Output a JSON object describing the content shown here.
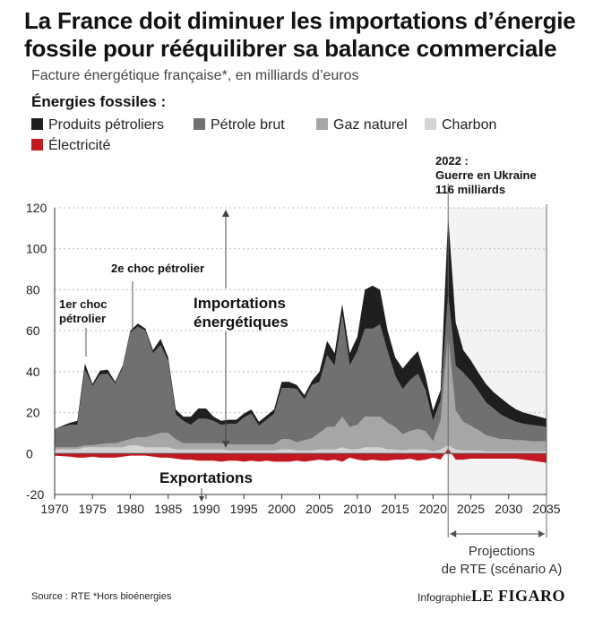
{
  "header": {
    "title_line1": "La France doit diminuer les importations d’énergie",
    "title_line2": "fossile pour rééquilibrer sa balance commerciale",
    "subtitle": "Facture énergétique française*, en milliards d’euros",
    "section_label": "Énergies fossiles :"
  },
  "legend": [
    {
      "label": "Produits pétroliers",
      "color": "#1f1f1f"
    },
    {
      "label": "Pétrole brut",
      "color": "#707070"
    },
    {
      "label": "Gaz naturel",
      "color": "#a6a6a6"
    },
    {
      "label": "Charbon",
      "color": "#d4d4d4"
    },
    {
      "label": "Électricité",
      "color": "#c41820"
    }
  ],
  "annotations": {
    "first_shock": [
      "1er choc",
      "pétrolier"
    ],
    "second_shock": "2e choc pétrolier",
    "imports": [
      "Importations",
      "énergétiques"
    ],
    "exports": "Exportations",
    "ukraine": [
      "2022 :",
      "Guerre en Ukraine",
      "116 milliards"
    ],
    "projection": [
      "Projections",
      "de RTE (scénario A)"
    ]
  },
  "footer": {
    "source": "Source : RTE *Hors bioénergies",
    "infographie": "Infographie",
    "brand": "LE FIGARO"
  },
  "chart_data": {
    "type": "area",
    "x": [
      1970,
      1972,
      1973,
      1974,
      1975,
      1976,
      1977,
      1978,
      1979,
      1980,
      1981,
      1982,
      1983,
      1984,
      1985,
      1986,
      1987,
      1988,
      1989,
      1990,
      1991,
      1992,
      1993,
      1994,
      1995,
      1996,
      1997,
      1998,
      1999,
      2000,
      2001,
      2002,
      2003,
      2004,
      2005,
      2006,
      2007,
      2008,
      2009,
      2010,
      2011,
      2012,
      2013,
      2014,
      2015,
      2016,
      2017,
      2018,
      2019,
      2020,
      2021,
      2022,
      2023,
      2024,
      2025,
      2026,
      2027,
      2028,
      2029,
      2030,
      2031,
      2032,
      2033,
      2034,
      2035
    ],
    "series": [
      {
        "name": "Charbon",
        "values": [
          2,
          2,
          2,
          3,
          3,
          3,
          3,
          3,
          3,
          4,
          4,
          3,
          3,
          3,
          3,
          2,
          2,
          2,
          2,
          2,
          2,
          2,
          1.5,
          1.5,
          1.5,
          1.5,
          1.5,
          1.5,
          1.5,
          2,
          2,
          1.5,
          1.5,
          1.5,
          2,
          2,
          2,
          3,
          2,
          2,
          3,
          3,
          3,
          2,
          2,
          1.5,
          2,
          2,
          2,
          1,
          2,
          4,
          2,
          1.5,
          1.5,
          1.5,
          1,
          1,
          1,
          1,
          1,
          1,
          1,
          1,
          1
        ]
      },
      {
        "name": "Gaz naturel",
        "values": [
          1,
          1,
          1,
          1,
          1,
          1.5,
          2,
          2,
          3,
          3,
          4,
          5,
          6,
          7,
          7,
          5,
          3,
          3,
          3,
          3,
          3,
          3,
          3,
          3,
          3,
          3,
          3,
          3,
          3,
          5,
          5,
          4,
          5,
          6,
          8,
          11,
          11,
          15,
          11,
          12,
          15,
          15,
          15,
          13,
          11,
          8,
          9,
          10,
          9,
          5,
          14,
          54,
          19,
          14,
          12,
          10,
          8,
          7,
          6,
          6,
          5.5,
          5.5,
          5,
          5,
          5
        ]
      },
      {
        "name": "Pétrole brut",
        "values": [
          9,
          11,
          11,
          37,
          29,
          34,
          34,
          29,
          36,
          52,
          54,
          52,
          40,
          43,
          35,
          12,
          11,
          9,
          12,
          12,
          11,
          9,
          10,
          10,
          13,
          15,
          9,
          12,
          15,
          25,
          25,
          26,
          20,
          26,
          25,
          35,
          30,
          50,
          30,
          36,
          43,
          43,
          45,
          35,
          25,
          22,
          25,
          27,
          20,
          10,
          10,
          20,
          22,
          24,
          22,
          19,
          16,
          14,
          12,
          10,
          9,
          8,
          8,
          7.5,
          7
        ]
      },
      {
        "name": "Produits pétroliers",
        "values": [
          0,
          1,
          2,
          3,
          1,
          2,
          2,
          1,
          1,
          1,
          1.5,
          1,
          1.5,
          3,
          2,
          2.5,
          2,
          4,
          5,
          5,
          2,
          2,
          2,
          2,
          2,
          2,
          2,
          2,
          2,
          3,
          3,
          2,
          2,
          2,
          5,
          7,
          6,
          5,
          6,
          7,
          19,
          21,
          17,
          10,
          9,
          10,
          10,
          11,
          7,
          5,
          5,
          38,
          21,
          11,
          10,
          9,
          9,
          8,
          8,
          7,
          6,
          5.5,
          5,
          4.5,
          4
        ]
      },
      {
        "name": "Électricité",
        "values": [
          -1,
          -1.5,
          -2,
          -2,
          -1.5,
          -2,
          -2,
          -2,
          -1.5,
          -1,
          -1,
          -1,
          -1.5,
          -2,
          -2,
          -2.5,
          -3,
          -3,
          -3.5,
          -3.5,
          -3.5,
          -4,
          -3.5,
          -3.5,
          -4,
          -3.5,
          -4,
          -3.5,
          -4,
          -4,
          -4,
          -3.5,
          -4,
          -3.5,
          -3,
          -3.5,
          -3,
          -4,
          -2,
          -3,
          -3.5,
          -3,
          -3.5,
          -3.5,
          -3,
          -3,
          -2.5,
          -3.5,
          -3,
          -2,
          -3,
          2.5,
          -3,
          -3,
          -2.5,
          -2.5,
          -2.5,
          -2.5,
          -2.5,
          -2.5,
          -2.5,
          -3,
          -3.5,
          -4,
          -4.5
        ]
      }
    ],
    "series_colors": [
      "#d4d4d4",
      "#a6a6a6",
      "#707070",
      "#1f1f1f",
      "#c41820"
    ],
    "xticks": [
      1970,
      1975,
      1980,
      1985,
      1990,
      1995,
      2000,
      2005,
      2010,
      2015,
      2020,
      2025,
      2030,
      2035
    ],
    "yticks": [
      -20,
      0,
      20,
      40,
      60,
      80,
      100,
      120
    ],
    "xlim": [
      1970,
      2035
    ],
    "ylim": [
      -20,
      120
    ],
    "projection_start": 2022,
    "grid": "horizontal-dashed"
  }
}
